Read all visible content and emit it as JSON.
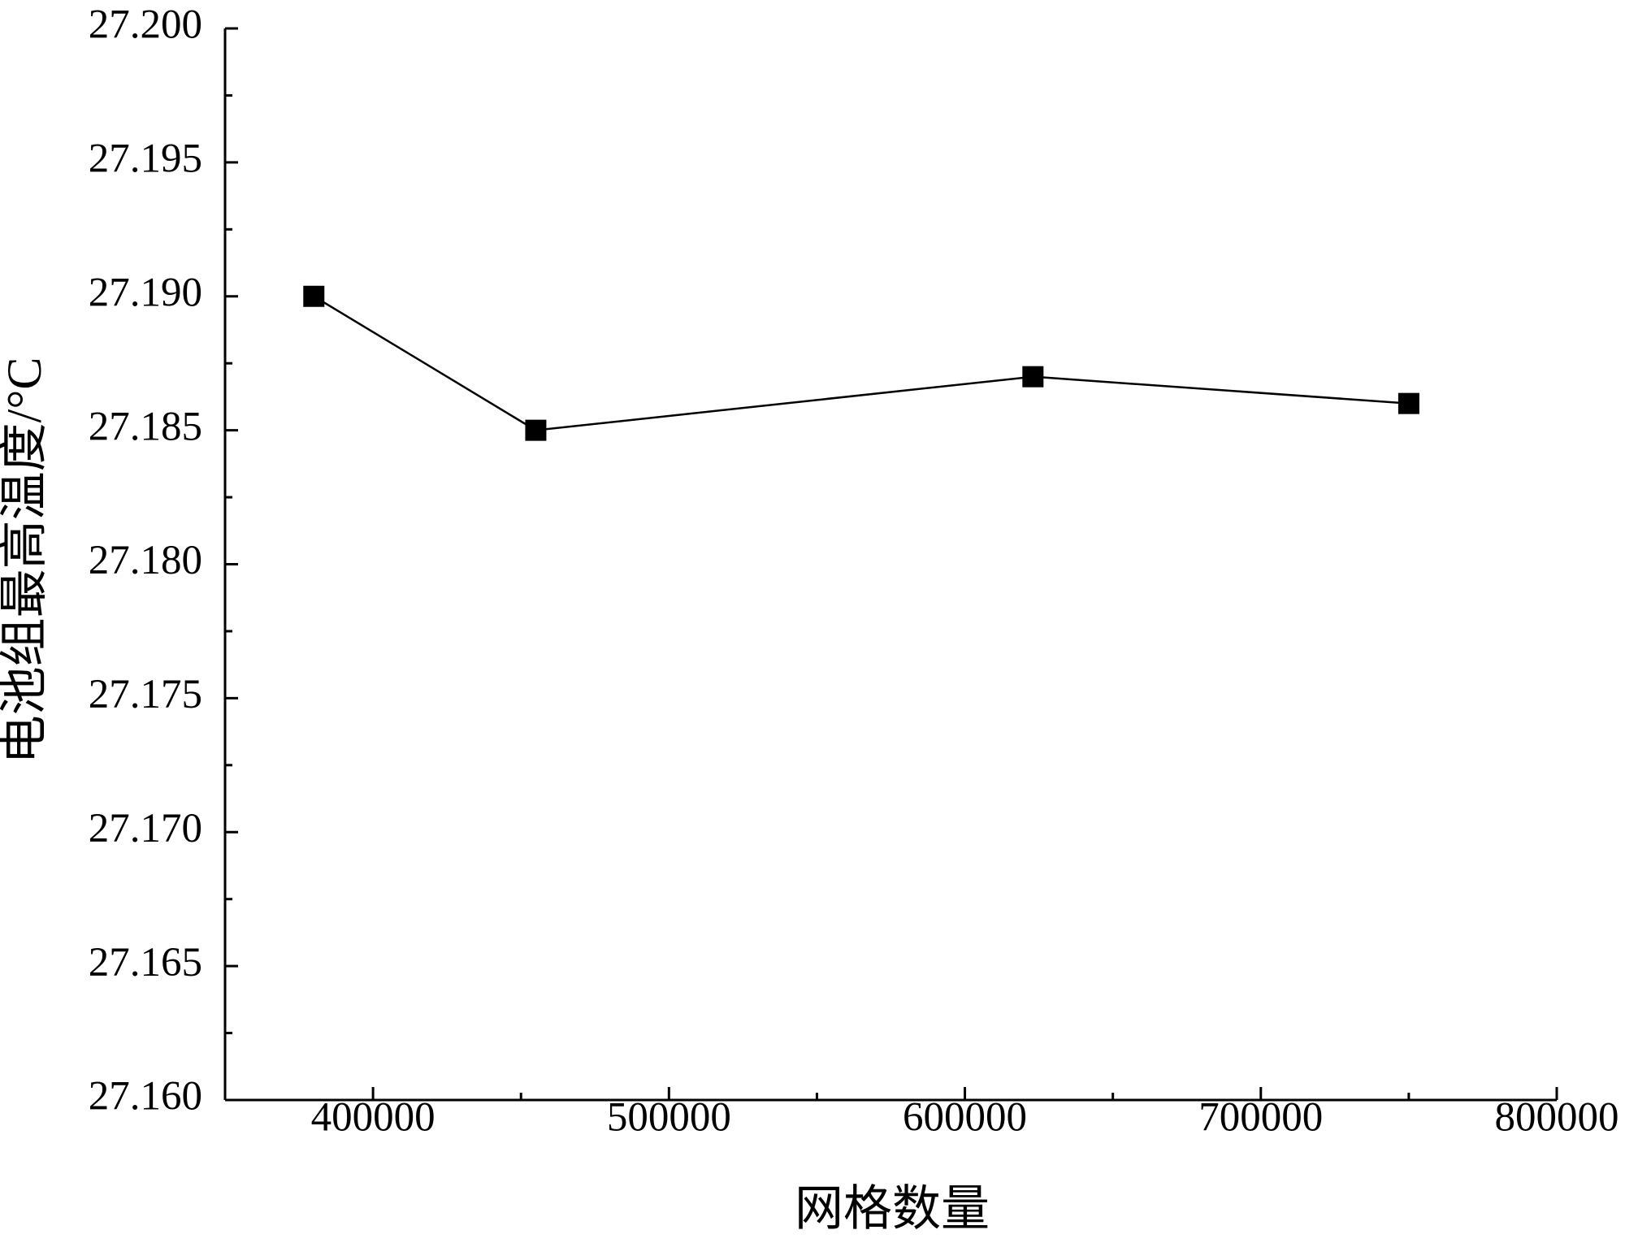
{
  "chart_data": {
    "type": "line",
    "xlabel": "网格数量",
    "ylabel": "电池组最高温度/°C",
    "x": [
      380000,
      455000,
      623000,
      750000
    ],
    "series": [
      {
        "color": "#000000",
        "values": [
          27.19,
          27.185,
          27.187,
          27.186
        ]
      }
    ],
    "xlim": [
      350000,
      800000
    ],
    "xticks": [
      400000,
      500000,
      600000,
      700000,
      800000
    ],
    "ylim": [
      27.16,
      27.2
    ],
    "yticks": [
      {
        "value": 27.16,
        "label": "27.160"
      },
      27.165,
      {
        "value": 27.17,
        "label": "27.170"
      },
      27.175,
      {
        "value": 27.18,
        "label": "27.180"
      },
      27.185,
      {
        "value": 27.19,
        "label": "27.190"
      },
      27.195,
      {
        "value": 27.2,
        "label": "27.200"
      }
    ],
    "grid": false
  }
}
